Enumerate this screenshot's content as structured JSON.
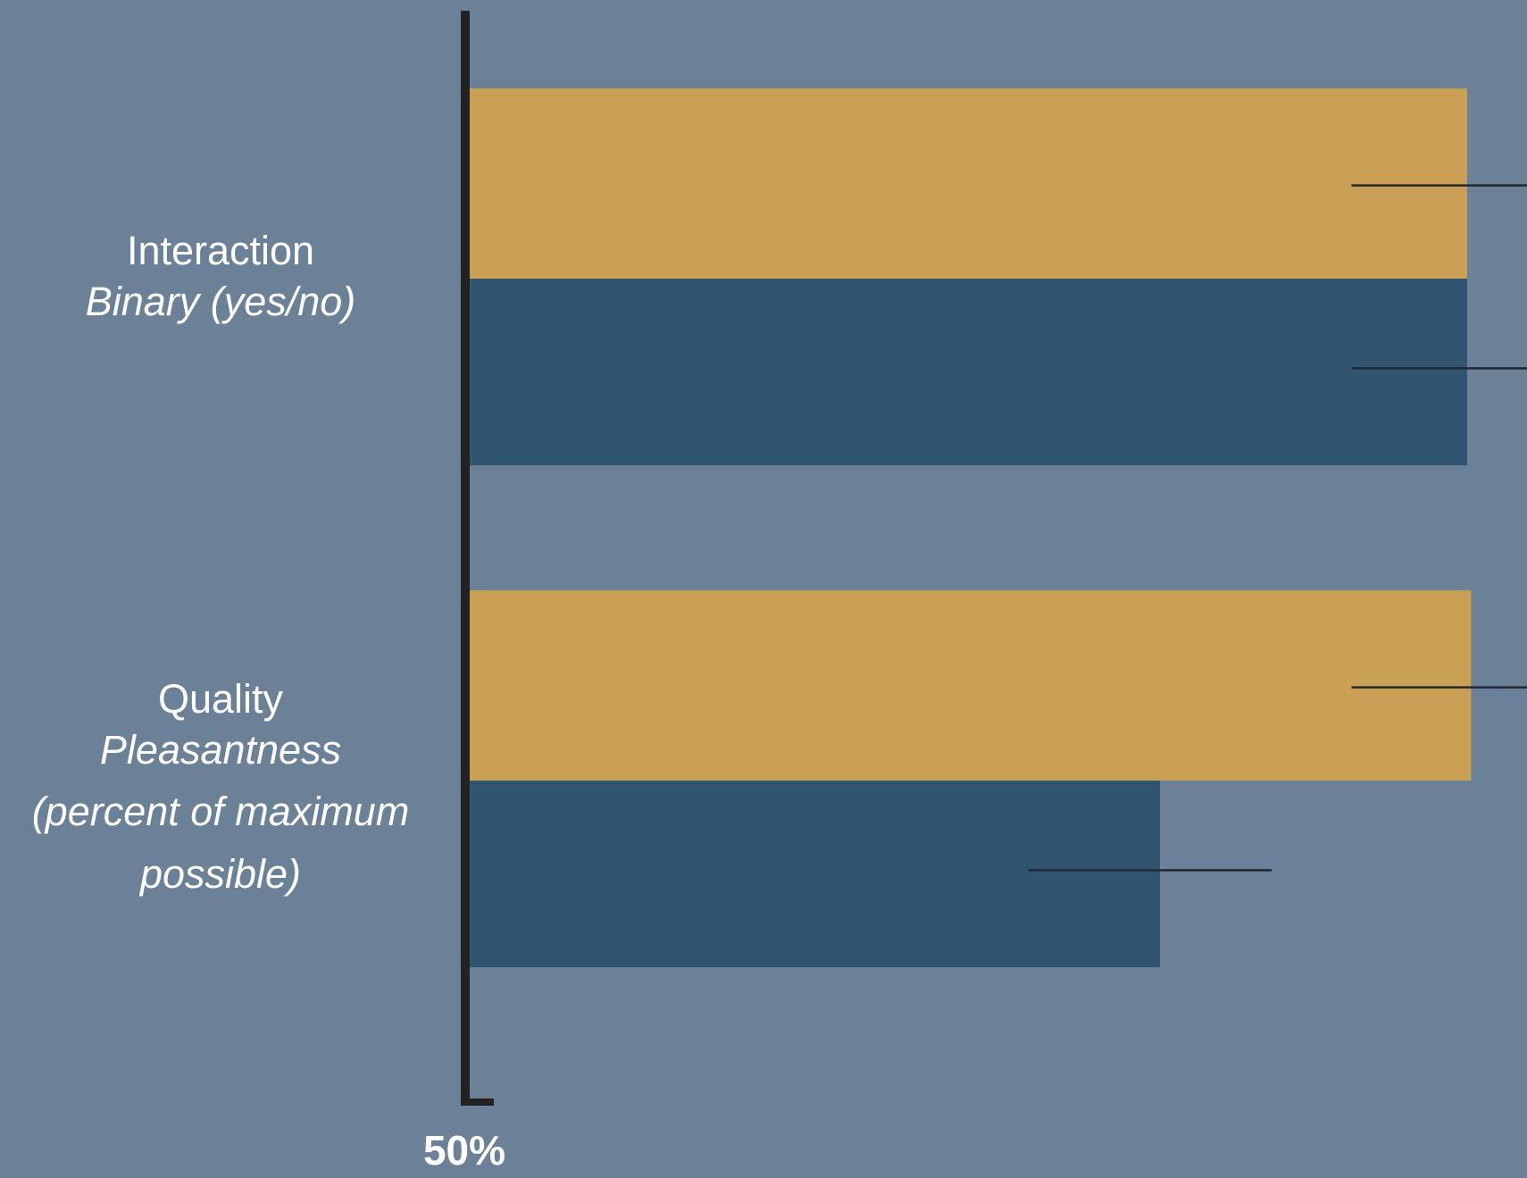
{
  "chart_data": {
    "type": "bar",
    "orientation": "horizontal",
    "categories": [
      {
        "main": "Interaction",
        "sub": [
          "Binary (yes/no)"
        ]
      },
      {
        "main": "Quality",
        "sub": [
          "Pleasantness",
          "(percent of maximum",
          "possible)"
        ]
      }
    ],
    "series": [
      {
        "color": "#c9a054",
        "values": [
          100,
          100.2
        ]
      },
      {
        "color": "#31556f",
        "values": [
          100,
          84.6
        ]
      }
    ],
    "error_bars": [
      [
        {
          "low": 94.2,
          "high": 107.8
        },
        {
          "low": 94.2,
          "high": 107.8
        }
      ],
      [
        {
          "low": 94.2,
          "high": 107.8
        },
        {
          "low": 78.0,
          "high": 90.2
        }
      ]
    ],
    "xlim": [
      50,
      100
    ],
    "tick_labels": [
      "50%"
    ],
    "colors": {
      "background": "#6a8197",
      "axis": "#222222",
      "text": "#ffffff"
    }
  }
}
